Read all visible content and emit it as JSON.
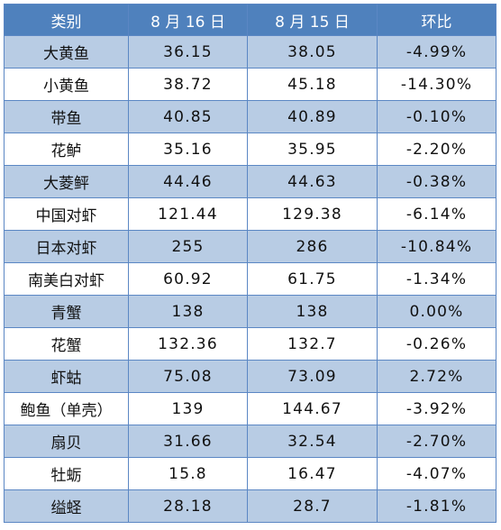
{
  "table": {
    "headers": [
      "类别",
      "8 月 16 日",
      "8 月 15 日",
      "环比"
    ],
    "rows": [
      {
        "name": "大黄鱼",
        "d16": "36.15",
        "d15": "38.05",
        "change": "-4.99%"
      },
      {
        "name": "小黄鱼",
        "d16": "38.72",
        "d15": "45.18",
        "change": "-14.30%"
      },
      {
        "name": "带鱼",
        "d16": "40.85",
        "d15": "40.89",
        "change": "-0.10%"
      },
      {
        "name": "花鲈",
        "d16": "35.16",
        "d15": "35.95",
        "change": "-2.20%"
      },
      {
        "name": "大菱鲆",
        "d16": "44.46",
        "d15": "44.63",
        "change": "-0.38%"
      },
      {
        "name": "中国对虾",
        "d16": "121.44",
        "d15": "129.38",
        "change": "-6.14%"
      },
      {
        "name": "日本对虾",
        "d16": "255",
        "d15": "286",
        "change": "-10.84%"
      },
      {
        "name": "南美白对虾",
        "d16": "60.92",
        "d15": "61.75",
        "change": "-1.34%"
      },
      {
        "name": "青蟹",
        "d16": "138",
        "d15": "138",
        "change": "0.00%"
      },
      {
        "name": "花蟹",
        "d16": "132.36",
        "d15": "132.7",
        "change": "-0.26%"
      },
      {
        "name": "虾蛄",
        "d16": "75.08",
        "d15": "73.09",
        "change": "2.72%"
      },
      {
        "name": "鲍鱼（单壳）",
        "d16": "139",
        "d15": "144.67",
        "change": "-3.92%"
      },
      {
        "name": "扇贝",
        "d16": "31.66",
        "d15": "32.54",
        "change": "-2.70%"
      },
      {
        "name": "牡蛎",
        "d16": "15.8",
        "d15": "16.47",
        "change": "-4.07%"
      },
      {
        "name": "缢蛏",
        "d16": "28.18",
        "d15": "28.7",
        "change": "-1.81%"
      }
    ]
  },
  "colors": {
    "header_bg": "#4f81bd",
    "header_text": "#ffffff",
    "stripe": "#b8cce4",
    "border": "#5b87c4"
  }
}
